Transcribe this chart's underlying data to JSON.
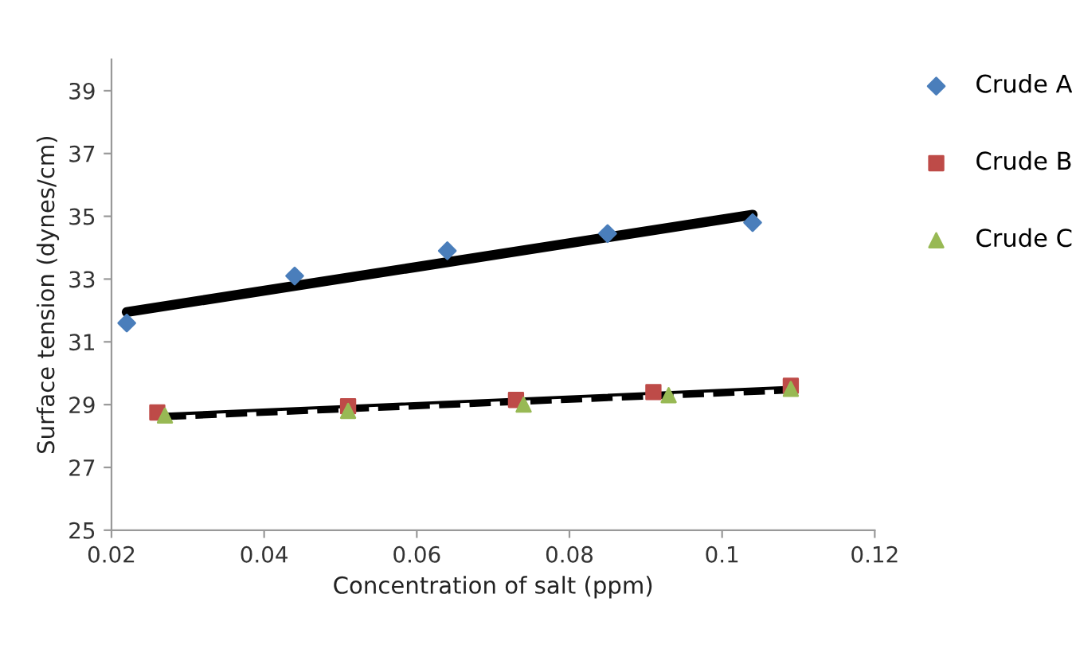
{
  "chart_data": {
    "type": "scatter",
    "xlabel": "Concentration of salt (ppm)",
    "ylabel": "Surface tension (dynes/cm)",
    "xlim": [
      0.02,
      0.12
    ],
    "xticks": [
      0.02,
      0.04,
      0.06,
      0.08,
      0.1,
      0.12
    ],
    "ylim": [
      25,
      40
    ],
    "yticks": [
      25,
      27,
      29,
      31,
      33,
      35,
      37,
      39
    ],
    "grid": false,
    "legend": "right",
    "series": [
      {
        "name": "Crude A",
        "color": "#4a7ebb",
        "marker": "diamond",
        "x": [
          0.022,
          0.044,
          0.064,
          0.085,
          0.104
        ],
        "values": [
          31.6,
          33.1,
          33.9,
          34.45,
          34.8
        ]
      },
      {
        "name": "Crude B",
        "color": "#be4b48",
        "marker": "square",
        "x": [
          0.026,
          0.051,
          0.073,
          0.091,
          0.109
        ],
        "values": [
          28.75,
          28.95,
          29.15,
          29.4,
          29.6
        ]
      },
      {
        "name": "Crude C",
        "color": "#98b954",
        "marker": "triangle",
        "x": [
          0.027,
          0.051,
          0.074,
          0.093,
          0.109
        ],
        "values": [
          28.65,
          28.8,
          29.0,
          29.3,
          29.5
        ]
      },
      {
        "type": "line",
        "color": "#000000",
        "line_style": "solid",
        "x": [
          0.022,
          0.104
        ],
        "values": [
          31.95,
          35.05
        ]
      },
      {
        "type": "line",
        "color": "#000000",
        "line_style": "solid",
        "x": [
          0.026,
          0.109
        ],
        "values": [
          28.68,
          29.55
        ]
      },
      {
        "type": "line",
        "color": "#000000",
        "line_style": "dashed",
        "x": [
          0.027,
          0.109
        ],
        "values": [
          28.6,
          29.45
        ]
      }
    ]
  }
}
